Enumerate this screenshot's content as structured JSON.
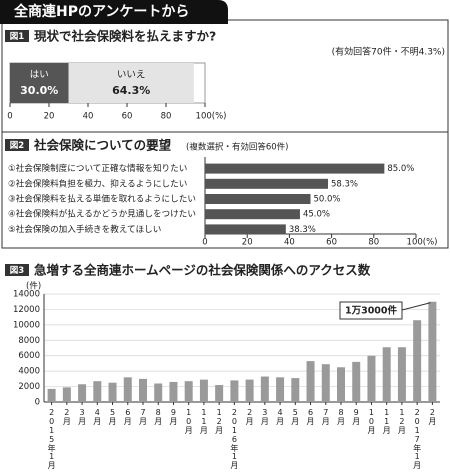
{
  "header": {
    "title": "全商連HPのアンケートから"
  },
  "chart_data": [
    {
      "type": "hstack",
      "figure_label": "図1",
      "title": "現状で社会保険料を払えますか?",
      "subtitle": "(有効回答70件・不明4.3%)",
      "series": [
        {
          "name": "はい",
          "color": "#555555",
          "values": [
            30.0
          ],
          "value_labels": [
            "30.0%"
          ]
        },
        {
          "name": "いいえ",
          "color": "#e4e4e4",
          "values": [
            64.3
          ],
          "value_labels": [
            "64.3%"
          ]
        }
      ],
      "xlim": [
        0,
        100
      ],
      "xticks": [
        0,
        20,
        40,
        60,
        80,
        {
          "value": 100,
          "label": "100(%)"
        }
      ]
    },
    {
      "type": "hbar",
      "figure_label": "図2",
      "title": "社会保険についての要望",
      "subtitle": "(複数選択・有効回答60件)",
      "categories": [
        "①社会保険制度について正確な情報を知りたい",
        "②社会保険料負担を極力、抑えるようにしたい",
        "③社会保険料を払える単価を取れるようにしたい",
        "④社会保険料が払えるかどうか見通しをつけたい",
        "⑤社会保険の加入手続きを教えてほしい"
      ],
      "values": [
        85.0,
        58.3,
        50.0,
        45.0,
        38.3
      ],
      "value_labels": [
        "85.0%",
        "58.3%",
        "50.0%",
        "45.0%",
        "38.3%"
      ],
      "color": "#555555",
      "xlim": [
        0,
        100
      ],
      "xticks": [
        0,
        20,
        40,
        60,
        80,
        {
          "value": 100,
          "label": "100(%)"
        }
      ]
    },
    {
      "type": "bar",
      "figure_label": "図3",
      "title": "急増する全商連ホームページの社会保険関係へのアクセス数",
      "ylabel": "(件)",
      "categories": [
        "2015年1月",
        "2月",
        "3月",
        "4月",
        "5月",
        "6月",
        "7月",
        "8月",
        "9月",
        "10月",
        "11月",
        "12月",
        "2016年1月",
        "2月",
        "3月",
        "4月",
        "5月",
        "6月",
        "7月",
        "8月",
        "9月",
        "10月",
        "11月",
        "12月",
        "2017年1月",
        "2月"
      ],
      "values": [
        1700,
        1900,
        2300,
        2700,
        2500,
        3200,
        3000,
        2400,
        2600,
        2700,
        2900,
        2200,
        2800,
        2900,
        3300,
        3200,
        3100,
        5300,
        4900,
        4500,
        5200,
        6000,
        7100,
        7100,
        10600,
        13000
      ],
      "color": "#9a9a9a",
      "annotation": "1万3000件",
      "ylim": [
        0,
        14000
      ],
      "yticks": [
        0,
        2000,
        4000,
        6000,
        8000,
        10000,
        12000,
        14000
      ],
      "grid": true
    }
  ]
}
